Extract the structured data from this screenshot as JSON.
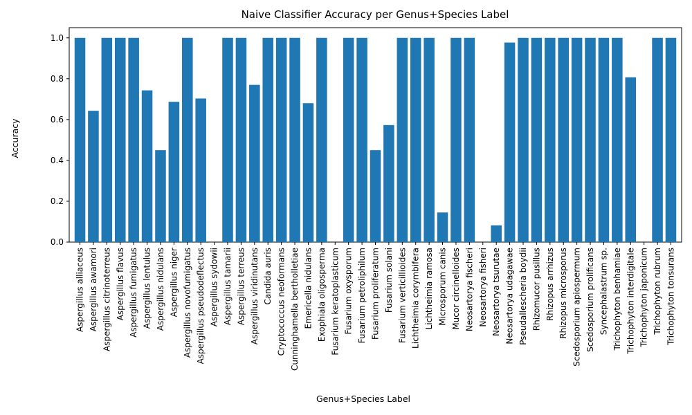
{
  "chart_data": {
    "type": "bar",
    "title": "Naive Classifier Accuracy per Genus+Species Label",
    "xlabel": "Genus+Species Label",
    "ylabel": "Accuracy",
    "ylim": [
      0,
      1.05
    ],
    "yticks": [
      "0.0",
      "0.2",
      "0.4",
      "0.6",
      "0.8",
      "1.0"
    ],
    "grid": false,
    "color": "#1f77b4",
    "categories": [
      "Aspergillus alliaceus",
      "Aspergillus awamori",
      "Aspergillus citrinoterreus",
      "Aspergillus flavus",
      "Aspergillus fumigatus",
      "Aspergillus lentulus",
      "Aspergillus nidulans",
      "Aspergillus niger",
      "Aspergillus novofumigatus",
      "Aspergillus pseudodeflectus",
      "Aspergillus sydowii",
      "Aspergillus tamarii",
      "Aspergillus terreus",
      "Aspergillus viridinutans",
      "Candida auris",
      "Cryptococcus neoformans",
      "Cunninghamella bertholletiae",
      "Emericella nidulans",
      "Exophiala oligosperma",
      "Fusarium keratoplasticum",
      "Fusarium oxysporum",
      "Fusarium petroliphilum",
      "Fusarium proliferatum",
      "Fusarium solani",
      "Fusarium verticillioides",
      "Lichtheimia corymbifera",
      "Lichtheimia ramosa",
      "Microsporum canis",
      "Mucor circinelloides",
      "Neosartorya fischeri",
      "Neosartorya fisheri",
      "Neosartorya tsurutae",
      "Neosartorya udagawae",
      "Pseudallescheria boydii",
      "Rhizomucor pusillus",
      "Rhizopus arrhizus",
      "Rhizopus microsporus",
      "Scedosporium apiospermum",
      "Scedosporium prolificans",
      "Syncephalastrum sp.",
      "Trichophyton benhamiae",
      "Trichophyton interdigitale",
      "Trichophyton japonicum",
      "Trichophyton rubrum",
      "Trichophyton tonsurans"
    ],
    "values": [
      1.0,
      0.643,
      1.0,
      1.0,
      1.0,
      0.743,
      0.45,
      0.687,
      1.0,
      0.703,
      0.0,
      1.0,
      1.0,
      0.77,
      1.0,
      1.0,
      1.0,
      0.68,
      1.0,
      0.0,
      1.0,
      1.0,
      0.45,
      0.573,
      1.0,
      1.0,
      1.0,
      0.145,
      1.0,
      1.0,
      0.0,
      0.082,
      0.977,
      1.0,
      1.0,
      1.0,
      1.0,
      1.0,
      1.0,
      1.0,
      1.0,
      0.807,
      0.0,
      1.0,
      1.0
    ]
  }
}
